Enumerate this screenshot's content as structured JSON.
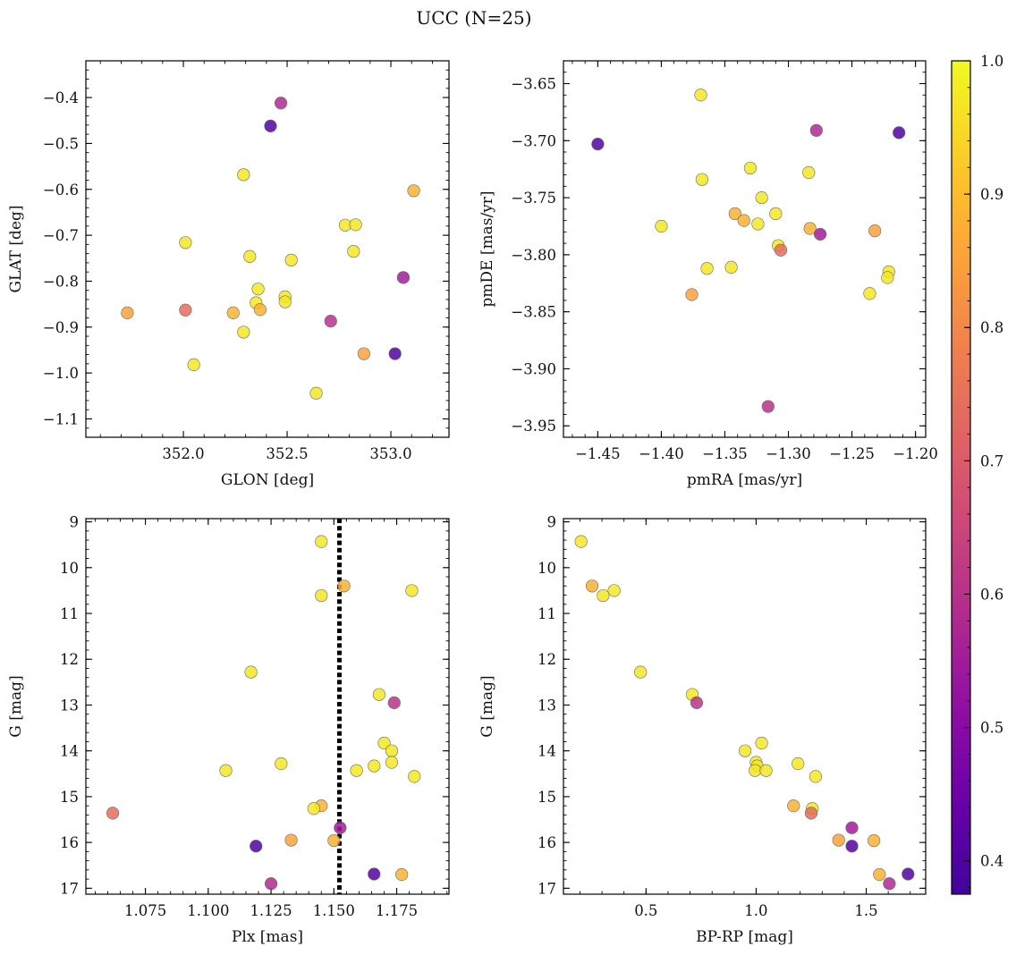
{
  "figure": {
    "title": "UCC (N=25)"
  },
  "colorbar": {
    "colormap": "plasma",
    "range": [
      0.375,
      1.0
    ],
    "ticks": [
      "0.4",
      "0.5",
      "0.6",
      "0.7",
      "0.8",
      "0.9",
      "1.0"
    ],
    "tick_values": [
      0.4,
      0.5,
      0.6,
      0.7,
      0.8,
      0.9,
      1.0
    ]
  },
  "chart_data": [
    {
      "type": "scatter",
      "id": "glon-glat",
      "xlabel": "GLON [deg]",
      "ylabel": "GLAT [deg]",
      "xlim": [
        351.53,
        353.28
      ],
      "ylim": [
        -1.14,
        -0.32
      ],
      "xticks": [
        352.0,
        352.5,
        353.0
      ],
      "xtick_labels": [
        "352.0",
        "352.5",
        "353.0"
      ],
      "yticks": [
        -1.1,
        -1.0,
        -0.9,
        -0.8,
        -0.7,
        -0.6,
        -0.5,
        -0.4
      ],
      "ytick_labels": [
        "−1.1",
        "−1.0",
        "−0.9",
        "−0.8",
        "−0.7",
        "−0.6",
        "−0.5",
        "−0.4"
      ],
      "points": [
        {
          "x": 352.47,
          "y": -0.412,
          "c": 0.58
        },
        {
          "x": 352.42,
          "y": -0.462,
          "c": 0.4
        },
        {
          "x": 352.29,
          "y": -0.568,
          "c": 0.97
        },
        {
          "x": 353.11,
          "y": -0.603,
          "c": 0.88
        },
        {
          "x": 352.78,
          "y": -0.678,
          "c": 0.97
        },
        {
          "x": 352.83,
          "y": -0.677,
          "c": 0.97
        },
        {
          "x": 352.01,
          "y": -0.716,
          "c": 0.97
        },
        {
          "x": 352.82,
          "y": -0.735,
          "c": 0.97
        },
        {
          "x": 352.32,
          "y": -0.746,
          "c": 0.97
        },
        {
          "x": 352.52,
          "y": -0.754,
          "c": 0.97
        },
        {
          "x": 353.06,
          "y": -0.792,
          "c": 0.55
        },
        {
          "x": 352.36,
          "y": -0.817,
          "c": 0.97
        },
        {
          "x": 352.49,
          "y": -0.834,
          "c": 0.97
        },
        {
          "x": 352.49,
          "y": -0.845,
          "c": 0.97
        },
        {
          "x": 352.35,
          "y": -0.847,
          "c": 0.97
        },
        {
          "x": 352.37,
          "y": -0.862,
          "c": 0.88
        },
        {
          "x": 352.01,
          "y": -0.863,
          "c": 0.74
        },
        {
          "x": 352.24,
          "y": -0.869,
          "c": 0.88
        },
        {
          "x": 351.73,
          "y": -0.869,
          "c": 0.85
        },
        {
          "x": 352.71,
          "y": -0.887,
          "c": 0.6
        },
        {
          "x": 352.29,
          "y": -0.911,
          "c": 0.97
        },
        {
          "x": 352.87,
          "y": -0.958,
          "c": 0.85
        },
        {
          "x": 353.02,
          "y": -0.958,
          "c": 0.4
        },
        {
          "x": 352.05,
          "y": -0.982,
          "c": 0.97
        },
        {
          "x": 352.64,
          "y": -1.044,
          "c": 0.97
        }
      ]
    },
    {
      "type": "scatter",
      "id": "pm",
      "xlabel": "pmRA [mas/yr]",
      "ylabel": "pmDE [mas/yr]",
      "xlim": [
        -1.477,
        -1.192
      ],
      "ylim": [
        -3.96,
        -3.63
      ],
      "xticks": [
        -1.45,
        -1.4,
        -1.35,
        -1.3,
        -1.25,
        -1.2
      ],
      "xtick_labels": [
        "−1.45",
        "−1.40",
        "−1.35",
        "−1.30",
        "−1.25",
        "−1.20"
      ],
      "yticks": [
        -3.95,
        -3.9,
        -3.85,
        -3.8,
        -3.75,
        -3.7,
        -3.65
      ],
      "ytick_labels": [
        "−3.95",
        "−3.90",
        "−3.85",
        "−3.80",
        "−3.75",
        "−3.70",
        "−3.65"
      ],
      "points": [
        {
          "x": -1.369,
          "y": -3.66,
          "c": 0.97
        },
        {
          "x": -1.278,
          "y": -3.691,
          "c": 0.58
        },
        {
          "x": -1.213,
          "y": -3.693,
          "c": 0.4
        },
        {
          "x": -1.45,
          "y": -3.703,
          "c": 0.4
        },
        {
          "x": -1.33,
          "y": -3.724,
          "c": 0.97
        },
        {
          "x": -1.284,
          "y": -3.728,
          "c": 0.97
        },
        {
          "x": -1.368,
          "y": -3.734,
          "c": 0.97
        },
        {
          "x": -1.321,
          "y": -3.75,
          "c": 0.97
        },
        {
          "x": -1.342,
          "y": -3.764,
          "c": 0.88
        },
        {
          "x": -1.31,
          "y": -3.764,
          "c": 0.97
        },
        {
          "x": -1.335,
          "y": -3.77,
          "c": 0.88
        },
        {
          "x": -1.324,
          "y": -3.773,
          "c": 0.97
        },
        {
          "x": -1.4,
          "y": -3.775,
          "c": 0.97
        },
        {
          "x": -1.283,
          "y": -3.777,
          "c": 0.88
        },
        {
          "x": -1.232,
          "y": -3.779,
          "c": 0.85
        },
        {
          "x": -1.275,
          "y": -3.782,
          "c": 0.55
        },
        {
          "x": -1.308,
          "y": -3.792,
          "c": 0.97
        },
        {
          "x": -1.306,
          "y": -3.796,
          "c": 0.74
        },
        {
          "x": -1.345,
          "y": -3.811,
          "c": 0.97
        },
        {
          "x": -1.364,
          "y": -3.812,
          "c": 0.97
        },
        {
          "x": -1.221,
          "y": -3.815,
          "c": 0.97
        },
        {
          "x": -1.222,
          "y": -3.82,
          "c": 0.97
        },
        {
          "x": -1.236,
          "y": -3.834,
          "c": 0.97
        },
        {
          "x": -1.376,
          "y": -3.835,
          "c": 0.85
        },
        {
          "x": -1.316,
          "y": -3.933,
          "c": 0.6
        }
      ]
    },
    {
      "type": "scatter",
      "id": "plx-g",
      "xlabel": "Plx [mas]",
      "ylabel": "G [mag]",
      "xlim": [
        1.0513,
        1.1958
      ],
      "ylim": [
        17.13,
        8.93
      ],
      "xticks": [
        1.075,
        1.1,
        1.125,
        1.15,
        1.175
      ],
      "xtick_labels": [
        "1.075",
        "1.100",
        "1.125",
        "1.150",
        "1.175"
      ],
      "yticks": [
        9,
        10,
        11,
        12,
        13,
        14,
        15,
        16,
        17
      ],
      "ytick_labels": [
        "9",
        "10",
        "11",
        "12",
        "13",
        "14",
        "15",
        "16",
        "17"
      ],
      "vline": 1.1522,
      "points": [
        {
          "x": 1.145,
          "y": 9.43,
          "c": 0.97
        },
        {
          "x": 1.154,
          "y": 10.4,
          "c": 0.88
        },
        {
          "x": 1.181,
          "y": 10.5,
          "c": 0.97
        },
        {
          "x": 1.145,
          "y": 10.61,
          "c": 0.97
        },
        {
          "x": 1.117,
          "y": 12.28,
          "c": 0.97
        },
        {
          "x": 1.168,
          "y": 12.77,
          "c": 0.97
        },
        {
          "x": 1.174,
          "y": 12.95,
          "c": 0.6
        },
        {
          "x": 1.17,
          "y": 13.83,
          "c": 0.97
        },
        {
          "x": 1.173,
          "y": 14.0,
          "c": 0.97
        },
        {
          "x": 1.173,
          "y": 14.25,
          "c": 0.97
        },
        {
          "x": 1.129,
          "y": 14.28,
          "c": 0.97
        },
        {
          "x": 1.166,
          "y": 14.33,
          "c": 0.97
        },
        {
          "x": 1.107,
          "y": 14.43,
          "c": 0.97
        },
        {
          "x": 1.159,
          "y": 14.43,
          "c": 0.97
        },
        {
          "x": 1.182,
          "y": 14.56,
          "c": 0.97
        },
        {
          "x": 1.145,
          "y": 15.2,
          "c": 0.88
        },
        {
          "x": 1.142,
          "y": 15.26,
          "c": 0.97
        },
        {
          "x": 1.062,
          "y": 15.36,
          "c": 0.74
        },
        {
          "x": 1.1525,
          "y": 15.68,
          "c": 0.55
        },
        {
          "x": 1.133,
          "y": 15.95,
          "c": 0.85
        },
        {
          "x": 1.15,
          "y": 15.96,
          "c": 0.88
        },
        {
          "x": 1.119,
          "y": 16.08,
          "c": 0.4
        },
        {
          "x": 1.166,
          "y": 16.69,
          "c": 0.4
        },
        {
          "x": 1.177,
          "y": 16.7,
          "c": 0.88
        },
        {
          "x": 1.125,
          "y": 16.9,
          "c": 0.58
        }
      ]
    },
    {
      "type": "scatter",
      "id": "cmd",
      "xlabel": "BP-RP [mag]",
      "ylabel": "G [mag]",
      "xlim": [
        0.125,
        1.77
      ],
      "ylim": [
        17.13,
        8.93
      ],
      "xticks": [
        0.5,
        1.0,
        1.5
      ],
      "xtick_labels": [
        "0.5",
        "1.0",
        "1.5"
      ],
      "yticks": [
        9,
        10,
        11,
        12,
        13,
        14,
        15,
        16,
        17
      ],
      "ytick_labels": [
        "9",
        "10",
        "11",
        "12",
        "13",
        "14",
        "15",
        "16",
        "17"
      ],
      "points": [
        {
          "x": 0.205,
          "y": 9.43,
          "c": 0.97
        },
        {
          "x": 0.255,
          "y": 10.4,
          "c": 0.88
        },
        {
          "x": 0.355,
          "y": 10.5,
          "c": 0.97
        },
        {
          "x": 0.305,
          "y": 10.61,
          "c": 0.97
        },
        {
          "x": 0.475,
          "y": 12.28,
          "c": 0.97
        },
        {
          "x": 0.71,
          "y": 12.77,
          "c": 0.97
        },
        {
          "x": 0.73,
          "y": 12.95,
          "c": 0.6
        },
        {
          "x": 1.025,
          "y": 13.83,
          "c": 0.97
        },
        {
          "x": 0.95,
          "y": 14.0,
          "c": 0.97
        },
        {
          "x": 1.0,
          "y": 14.25,
          "c": 0.97
        },
        {
          "x": 1.19,
          "y": 14.28,
          "c": 0.97
        },
        {
          "x": 1.005,
          "y": 14.33,
          "c": 0.97
        },
        {
          "x": 0.995,
          "y": 14.43,
          "c": 0.97
        },
        {
          "x": 1.045,
          "y": 14.43,
          "c": 0.97
        },
        {
          "x": 1.27,
          "y": 14.56,
          "c": 0.97
        },
        {
          "x": 1.17,
          "y": 15.2,
          "c": 0.88
        },
        {
          "x": 1.255,
          "y": 15.26,
          "c": 0.97
        },
        {
          "x": 1.25,
          "y": 15.36,
          "c": 0.74
        },
        {
          "x": 1.435,
          "y": 15.68,
          "c": 0.55
        },
        {
          "x": 1.375,
          "y": 15.95,
          "c": 0.85
        },
        {
          "x": 1.535,
          "y": 15.96,
          "c": 0.88
        },
        {
          "x": 1.435,
          "y": 16.08,
          "c": 0.4
        },
        {
          "x": 1.69,
          "y": 16.69,
          "c": 0.4
        },
        {
          "x": 1.56,
          "y": 16.7,
          "c": 0.88
        },
        {
          "x": 1.605,
          "y": 16.9,
          "c": 0.58
        }
      ]
    }
  ]
}
